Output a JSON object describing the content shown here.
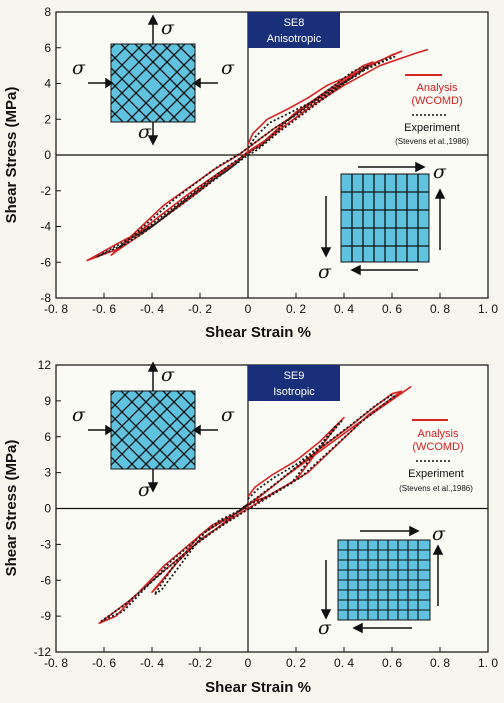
{
  "colors": {
    "analysis": "#d42424",
    "experiment": "#1a1a1a",
    "badge": "#1a2f7a",
    "panel_fill": "#5fc3e0"
  },
  "icon_names": [
    "stress-arrow-icon",
    "mesh-panel-icon"
  ],
  "chart_data": [
    {
      "type": "line",
      "badge": [
        "SE8",
        "Anisotropic"
      ],
      "xlabel": "Shear Strain %",
      "ylabel": "Shear Stress (MPa)",
      "xlim": [
        -0.8,
        1.0
      ],
      "ylim": [
        -8,
        8
      ],
      "xticks": [
        -0.8,
        -0.6,
        -0.4,
        -0.2,
        0,
        0.2,
        0.4,
        0.6,
        0.8,
        1.0
      ],
      "xtick_labels": [
        "-0. 8",
        "-0. 6",
        "-0. 4",
        "-0. 2",
        "0",
        "0. 2",
        "0. 4",
        "0. 6",
        "0. 8",
        "1. 0"
      ],
      "yticks": [
        8,
        6,
        4,
        2,
        0,
        -2,
        -4,
        -6,
        -8
      ],
      "ytick_labels": [
        "8",
        "6",
        "4",
        "2",
        "0",
        "-2",
        "-4",
        "-6",
        "-8"
      ],
      "legend": {
        "analysis": [
          "Analysis",
          "(WCOMD)"
        ],
        "experiment": "Experiment",
        "source": "(Stevens et al.,1986)"
      },
      "sigma": "σ",
      "mesh_pattern": "diagonal",
      "series": [
        {
          "name": "Analysis (WCOMD)",
          "style": "solid",
          "x": [
            0,
            0.02,
            0.08,
            0.17,
            0.25,
            0.33,
            0.45,
            0.52,
            0.48,
            0.2,
            0.07,
            0.0,
            -0.06,
            -0.12,
            -0.2,
            -0.3,
            -0.42,
            -0.55,
            -0.57,
            -0.35,
            -0.14,
            -0.04,
            0.02,
            0.1,
            0.2,
            0.32,
            0.45,
            0.6,
            0.64,
            0.5,
            0.15,
            0.05,
            0.0,
            -0.08,
            -0.15,
            -0.25,
            -0.38,
            -0.55,
            -0.67,
            -0.55,
            -0.25,
            -0.1,
            -0.03,
            0.03,
            0.12,
            0.25,
            0.4,
            0.55,
            0.7,
            0.75
          ],
          "y": [
            0.6,
            1.2,
            2.0,
            2.6,
            3.2,
            3.9,
            4.6,
            5.2,
            5.0,
            2.4,
            0.8,
            0.2,
            -0.5,
            -1.1,
            -2.0,
            -3.0,
            -4.2,
            -5.4,
            -5.6,
            -2.8,
            -0.8,
            0.0,
            0.6,
            1.4,
            2.3,
            3.4,
            4.6,
            5.6,
            5.8,
            5.0,
            1.6,
            0.5,
            0.2,
            -0.7,
            -1.4,
            -2.4,
            -3.8,
            -5.0,
            -5.9,
            -5.3,
            -2.2,
            -0.8,
            -0.2,
            0.4,
            1.3,
            2.6,
            3.9,
            5.0,
            5.7,
            5.9
          ]
        },
        {
          "name": "Experiment",
          "style": "dotted",
          "x": [
            0,
            0.03,
            0.09,
            0.18,
            0.27,
            0.35,
            0.46,
            0.5,
            0.44,
            0.18,
            0.06,
            -0.01,
            -0.07,
            -0.13,
            -0.22,
            -0.32,
            -0.44,
            -0.54,
            -0.52,
            -0.3,
            -0.12,
            -0.03,
            0.03,
            0.11,
            0.22,
            0.34,
            0.47,
            0.58,
            0.61,
            0.46,
            0.13,
            0.04,
            -0.01,
            -0.09,
            -0.17,
            -0.27,
            -0.4,
            -0.55,
            -0.63,
            -0.5,
            -0.2,
            -0.07,
            0.0
          ],
          "y": [
            0.4,
            1.0,
            1.8,
            2.4,
            3.0,
            3.7,
            4.5,
            5.0,
            4.7,
            2.1,
            0.6,
            0.0,
            -0.7,
            -1.3,
            -2.2,
            -3.2,
            -4.4,
            -5.2,
            -5.0,
            -2.4,
            -0.6,
            0.1,
            0.7,
            1.5,
            2.4,
            3.5,
            4.7,
            5.4,
            5.5,
            4.6,
            1.3,
            0.3,
            -0.1,
            -0.9,
            -1.6,
            -2.6,
            -4.0,
            -5.1,
            -5.7,
            -4.9,
            -1.8,
            -0.5,
            0.1
          ]
        }
      ]
    },
    {
      "type": "line",
      "badge": [
        "SE9",
        "Isotropic"
      ],
      "xlabel": "Shear Strain %",
      "ylabel": "Shear Stress (MPa)",
      "xlim": [
        -0.8,
        1.0
      ],
      "ylim": [
        -12,
        12
      ],
      "xticks": [
        -0.8,
        -0.6,
        -0.4,
        -0.2,
        0,
        0.2,
        0.4,
        0.6,
        0.8,
        1.0
      ],
      "xtick_labels": [
        "-0. 8",
        "-0. 6",
        "-0. 4",
        "-0. 2",
        "0",
        "0. 2",
        "0. 4",
        "0. 6",
        "0. 8",
        "1. 0"
      ],
      "yticks": [
        12,
        9,
        6,
        3,
        0,
        -3,
        -6,
        -9,
        -12
      ],
      "ytick_labels": [
        "12",
        "9",
        "6",
        "3",
        "0",
        "-3",
        "-6",
        "-9",
        "-12"
      ],
      "legend": {
        "analysis": [
          "Analysis",
          "(WCOMD)"
        ],
        "experiment": "Experiment",
        "source": "(Stevens et al.,1986)"
      },
      "sigma": "σ",
      "mesh_pattern": "grid",
      "series": [
        {
          "name": "Analysis (WCOMD)",
          "style": "solid",
          "x": [
            0,
            0.03,
            0.1,
            0.2,
            0.3,
            0.4,
            0.38,
            0.2,
            0.05,
            0.0,
            -0.08,
            -0.2,
            -0.3,
            -0.4,
            -0.38,
            -0.2,
            -0.05,
            0.02,
            0.1,
            0.2,
            0.3,
            0.42,
            0.52,
            0.6,
            0.64,
            0.5,
            0.25,
            0.08,
            0.0,
            -0.1,
            -0.22,
            -0.35,
            -0.5,
            -0.62,
            -0.55,
            -0.35,
            -0.15,
            -0.03,
            0.05,
            0.15,
            0.3,
            0.45,
            0.58,
            0.68
          ],
          "y": [
            1.0,
            1.8,
            2.8,
            4.0,
            5.6,
            7.6,
            7.2,
            2.4,
            0.6,
            0.0,
            -1.0,
            -2.6,
            -4.6,
            -7.0,
            -6.6,
            -2.2,
            -0.4,
            0.6,
            1.8,
            3.4,
            5.0,
            6.8,
            8.4,
            9.6,
            9.8,
            7.8,
            3.0,
            1.0,
            0.4,
            -1.2,
            -3.0,
            -5.2,
            -7.8,
            -9.6,
            -9.0,
            -4.8,
            -1.4,
            -0.2,
            1.0,
            2.6,
            4.8,
            7.0,
            8.8,
            10.2
          ]
        },
        {
          "name": "Experiment",
          "style": "dotted",
          "x": [
            0,
            0.04,
            0.11,
            0.21,
            0.31,
            0.39,
            0.36,
            0.18,
            0.04,
            -0.01,
            -0.09,
            -0.21,
            -0.31,
            -0.39,
            -0.36,
            -0.18,
            -0.04,
            0.03,
            0.11,
            0.21,
            0.31,
            0.43,
            0.53,
            0.6,
            0.61,
            0.47,
            0.22,
            0.06,
            -0.01,
            -0.11,
            -0.23,
            -0.36,
            -0.51,
            -0.61,
            -0.52,
            -0.32,
            -0.12,
            0.0
          ],
          "y": [
            0.8,
            1.6,
            2.6,
            3.8,
            5.4,
            7.3,
            6.8,
            2.1,
            0.4,
            -0.2,
            -1.2,
            -2.8,
            -4.8,
            -7.2,
            -6.8,
            -2.0,
            -0.2,
            0.8,
            2.0,
            3.6,
            5.2,
            7.0,
            8.6,
            9.5,
            9.4,
            7.2,
            2.6,
            0.8,
            0.2,
            -1.4,
            -3.2,
            -5.4,
            -8.0,
            -9.4,
            -8.6,
            -4.4,
            -1.0,
            0.2
          ]
        }
      ]
    }
  ]
}
